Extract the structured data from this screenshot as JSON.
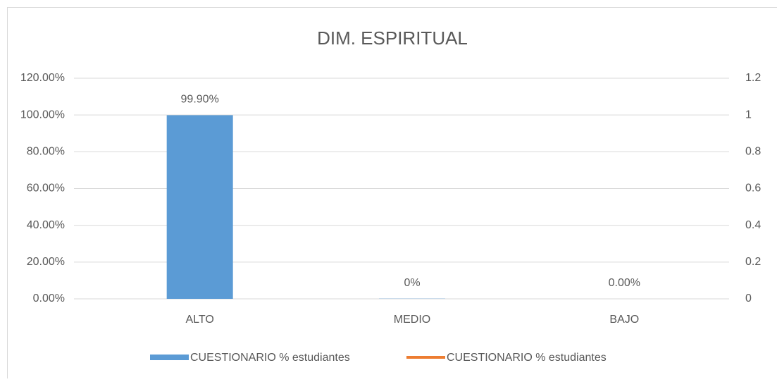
{
  "chart_data": {
    "type": "bar",
    "title": "DIM. ESPIRITUAL",
    "categories": [
      "ALTO",
      "MEDIO",
      "BAJO"
    ],
    "series": [
      {
        "name": "CUESTIONARIO % estudiantes",
        "color": "#5b9bd5",
        "values": [
          99.9,
          0.1,
          0
        ],
        "value_labels": [
          "99.90%",
          "0%",
          "0.00%"
        ]
      },
      {
        "name": "CUESTIONARIO % estudiantes",
        "color": "#ed7d31",
        "type": "line",
        "axis": "y2",
        "values": [
          null,
          null,
          null
        ]
      }
    ],
    "ylim": [
      0,
      120
    ],
    "yticks": [
      {
        "value": 0,
        "label": "0.00%"
      },
      {
        "value": 20,
        "label": "20.00%"
      },
      {
        "value": 40,
        "label": "40.00%"
      },
      {
        "value": 60,
        "label": "60.00%"
      },
      {
        "value": 80,
        "label": "80.00%"
      },
      {
        "value": 100,
        "label": "100.00%"
      },
      {
        "value": 120,
        "label": "120.00%"
      }
    ],
    "y2lim": [
      0,
      1.2
    ],
    "y2ticks": [
      0,
      0.2,
      0.4,
      0.6,
      0.8,
      1,
      1.2
    ],
    "grid": true,
    "legend": "bottom"
  }
}
